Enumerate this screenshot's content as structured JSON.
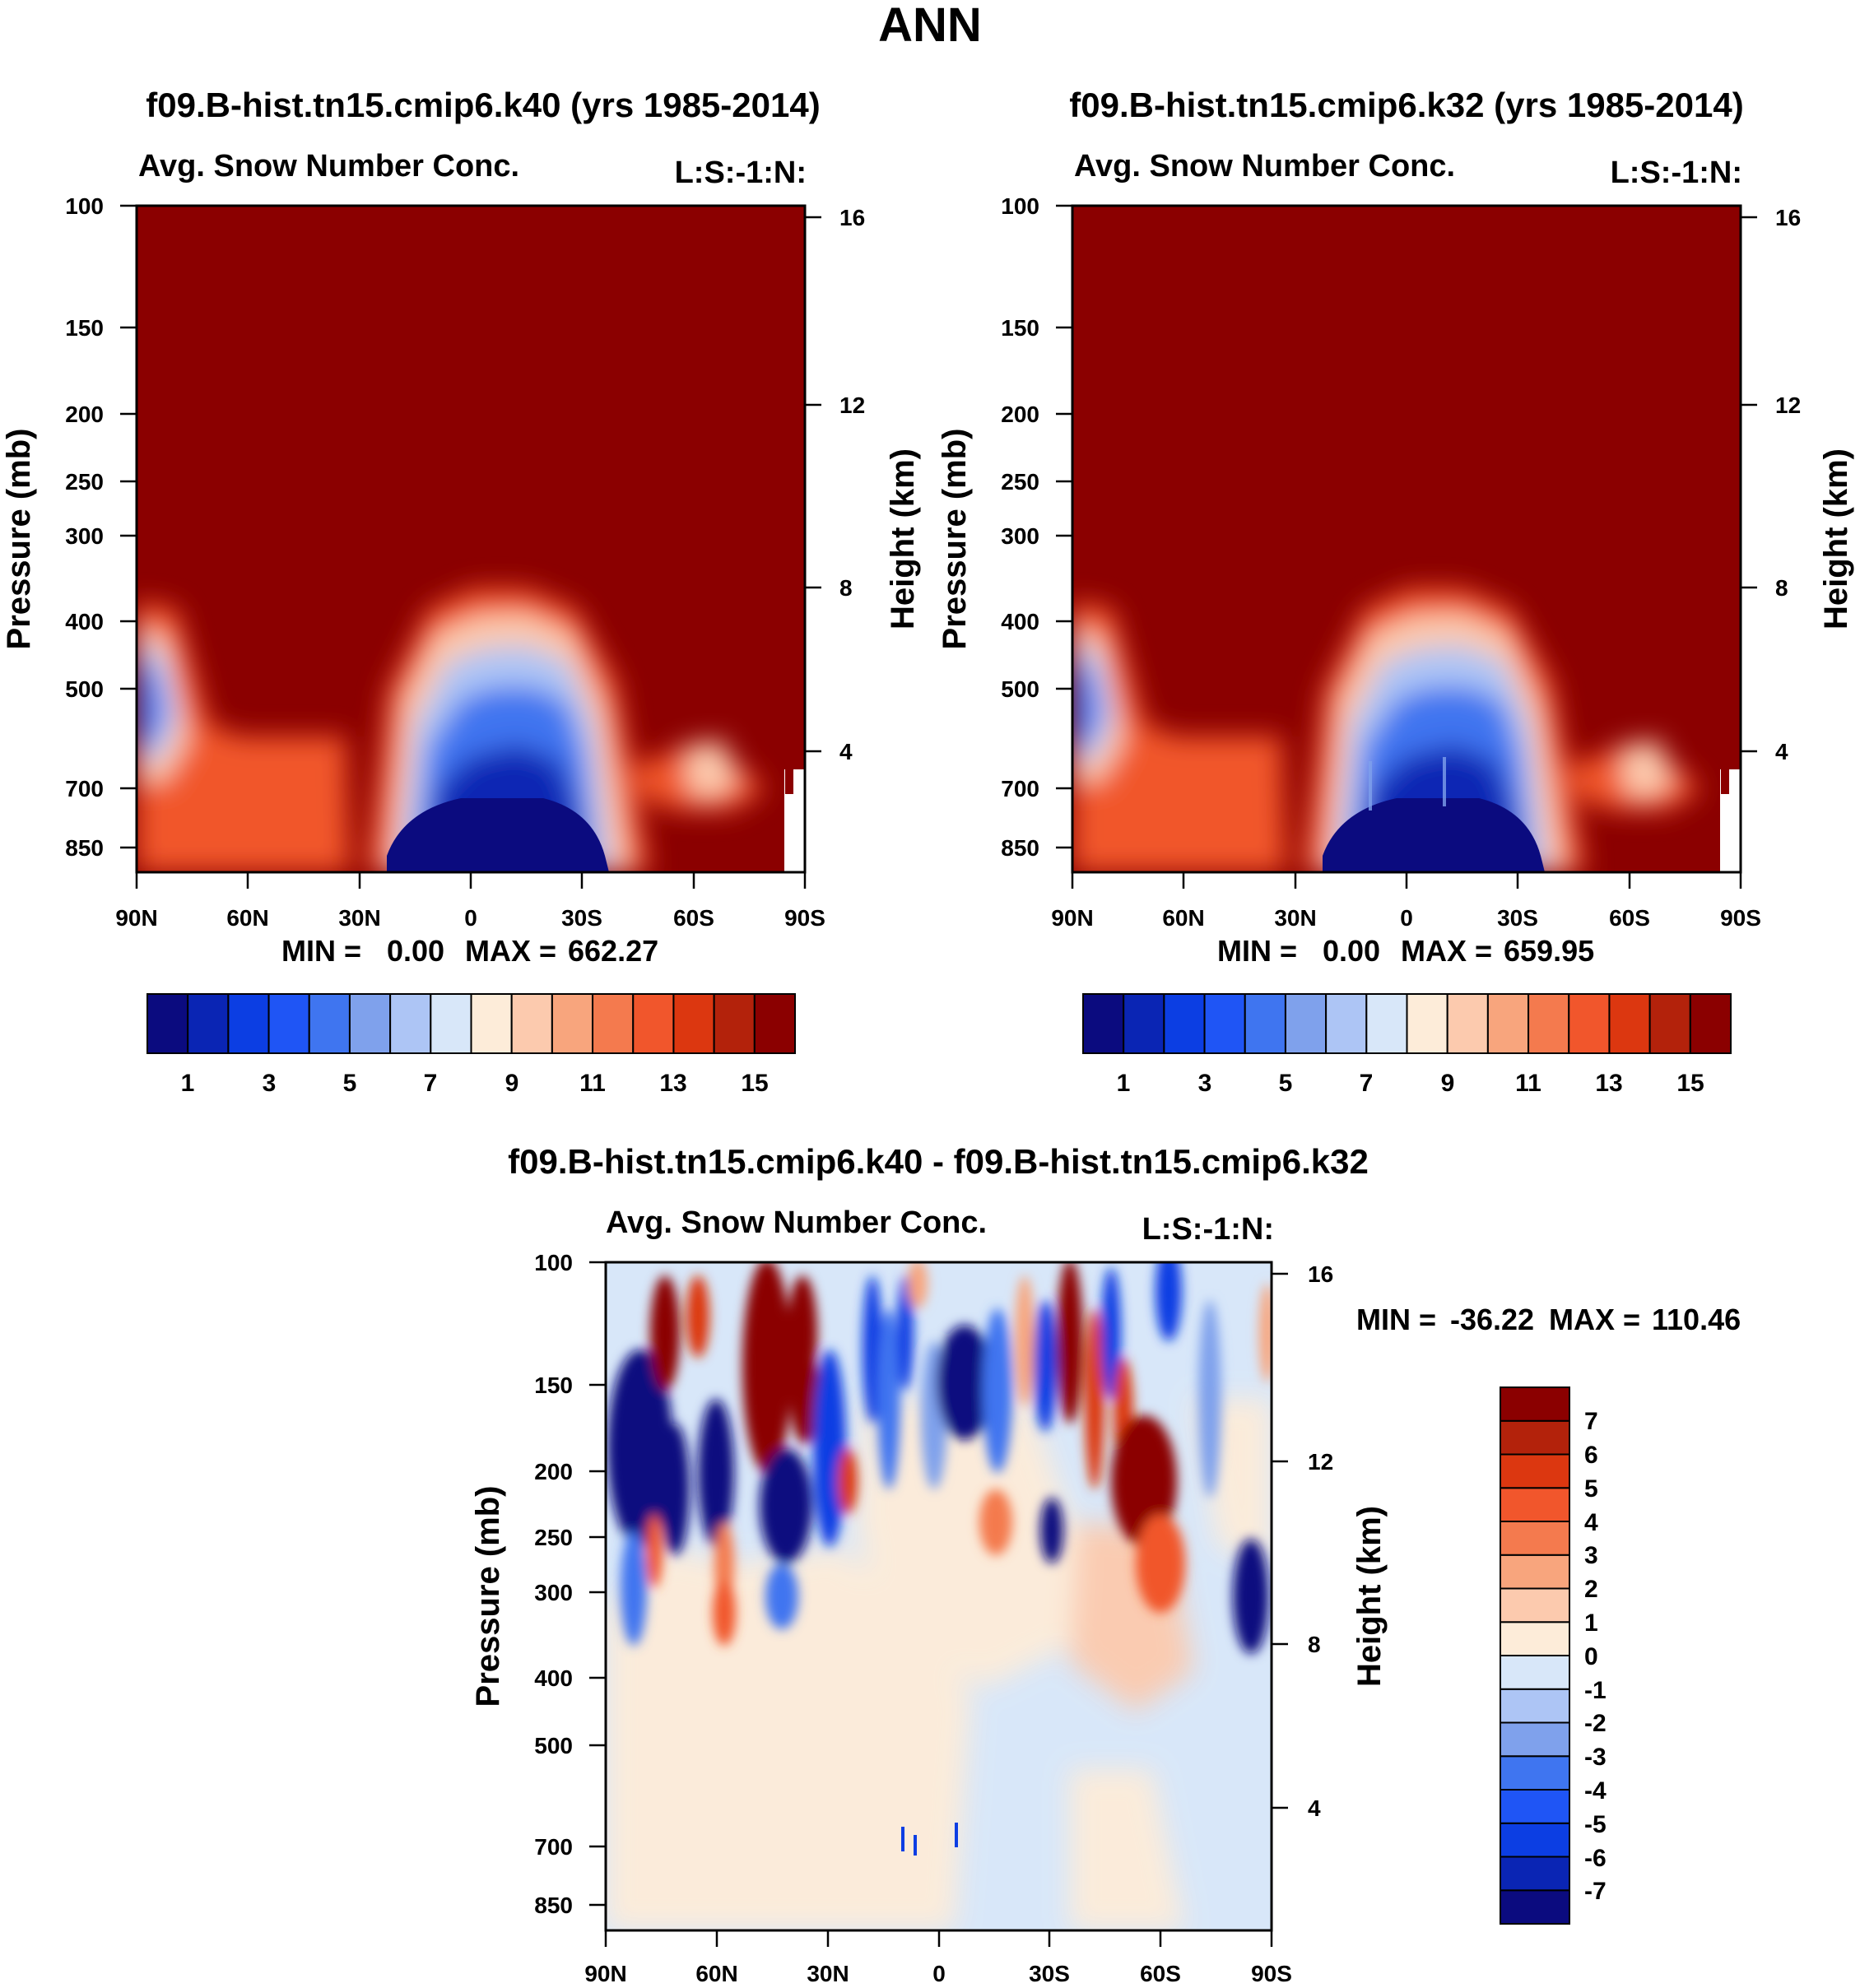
{
  "page_title": "ANN",
  "colors": {
    "pos_scale": [
      "#0b0b7f",
      "#0a25b4",
      "#0c3ee3",
      "#1f55f5",
      "#3f75f0",
      "#7fa1ec",
      "#adc5f5",
      "#d8e7f9",
      "#fdecd9",
      "#fccaae",
      "#f8a57d",
      "#f47a4e",
      "#f1562c",
      "#dc3710",
      "#b3220b",
      "#8b0000"
    ],
    "diff_scale": [
      "#0b0b7f",
      "#0a25b4",
      "#0c3ee3",
      "#1f55f5",
      "#3f75f0",
      "#7fa1ec",
      "#adc5f5",
      "#d8e7f9",
      "#fdecd9",
      "#fccaae",
      "#f8a57d",
      "#f47a4e",
      "#f1562c",
      "#dc3710",
      "#b3220b",
      "#8b0000"
    ]
  },
  "chart_data": [
    {
      "type": "contour",
      "title": "f09.B-hist.tn15.cmip6.k40 (yrs 1985-2014)",
      "left_label": "Avg. Snow Number Conc.",
      "right_label": "L:S:-1:N:",
      "ylabel": "Pressure (mb)",
      "y2label": "Height (km)",
      "x_ticks": [
        "90N",
        "60N",
        "30N",
        "0",
        "30S",
        "60S",
        "90S"
      ],
      "y_ticks": [
        "100",
        "150",
        "200",
        "250",
        "300",
        "400",
        "500",
        "700",
        "850"
      ],
      "y2_ticks": [
        "16",
        "12",
        "8",
        "4"
      ],
      "stats": {
        "min_label": "MIN =",
        "min": "0.00",
        "max_label": "MAX =",
        "max": "662.27"
      },
      "colorbar_labels": [
        "1",
        "3",
        "5",
        "7",
        "9",
        "11",
        "13",
        "15"
      ]
    },
    {
      "type": "contour",
      "title": "f09.B-hist.tn15.cmip6.k32 (yrs 1985-2014)",
      "left_label": "Avg. Snow Number Conc.",
      "right_label": "L:S:-1:N:",
      "ylabel": "Pressure (mb)",
      "y2label": "Height (km)",
      "x_ticks": [
        "90N",
        "60N",
        "30N",
        "0",
        "30S",
        "60S",
        "90S"
      ],
      "y_ticks": [
        "100",
        "150",
        "200",
        "250",
        "300",
        "400",
        "500",
        "700",
        "850"
      ],
      "y2_ticks": [
        "16",
        "12",
        "8",
        "4"
      ],
      "stats": {
        "min_label": "MIN =",
        "min": "0.00",
        "max_label": "MAX =",
        "max": "659.95"
      },
      "colorbar_labels": [
        "1",
        "3",
        "5",
        "7",
        "9",
        "11",
        "13",
        "15"
      ]
    },
    {
      "type": "contour",
      "title": "f09.B-hist.tn15.cmip6.k40 - f09.B-hist.tn15.cmip6.k32",
      "left_label": "Avg. Snow Number Conc.",
      "right_label": "L:S:-1:N:",
      "ylabel": "Pressure (mb)",
      "y2label": "Height (km)",
      "x_ticks": [
        "90N",
        "60N",
        "30N",
        "0",
        "30S",
        "60S",
        "90S"
      ],
      "y_ticks": [
        "100",
        "150",
        "200",
        "250",
        "300",
        "400",
        "500",
        "700",
        "850"
      ],
      "y2_ticks": [
        "16",
        "12",
        "8",
        "4"
      ],
      "stats": {
        "min_label": "MIN =",
        "min": "-36.22",
        "max_label": "MAX =",
        "max": "110.46"
      },
      "colorbar_labels": [
        "7",
        "6",
        "5",
        "4",
        "3",
        "2",
        "1",
        "0",
        "-1",
        "-2",
        "-3",
        "-4",
        "-5",
        "-6",
        "-7"
      ]
    }
  ]
}
